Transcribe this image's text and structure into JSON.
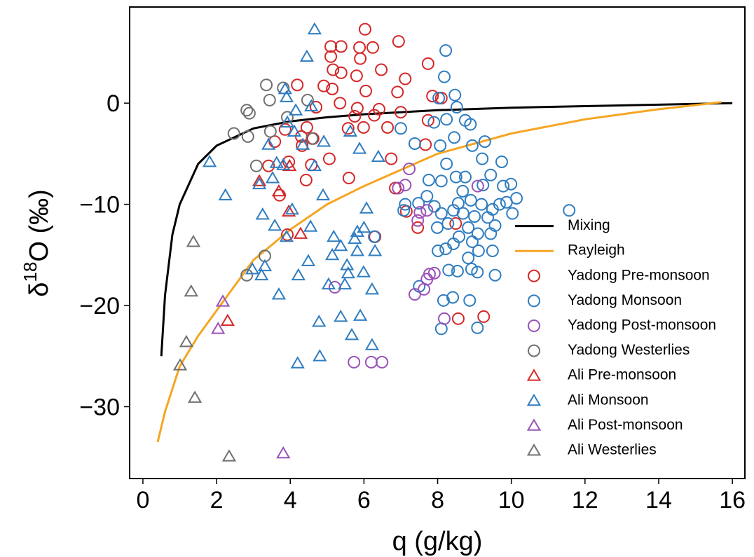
{
  "chart_data": {
    "type": "scatter",
    "xlabel": "q (g/kg)",
    "ylabel": {
      "base": "δ",
      "sup": "18",
      "rest": "O (‰)"
    },
    "xlim": [
      -0.36,
      16.34
    ],
    "ylim": [
      -37.1,
      9.5
    ],
    "xticks": [
      0,
      2,
      4,
      6,
      8,
      10,
      12,
      14,
      16
    ],
    "yticks": [
      {
        "value": -30,
        "label": "−30"
      },
      {
        "value": -20,
        "label": "−20"
      },
      {
        "value": -10,
        "label": "−10"
      },
      0
    ],
    "legend": "lower right",
    "series": [
      {
        "name": "Mixing",
        "kind": "line",
        "color": "#000000",
        "x": [
          0.5,
          0.6,
          0.8,
          1,
          1.5,
          2,
          3,
          4,
          5,
          6,
          8,
          10,
          12,
          14,
          16
        ],
        "y": [
          -25,
          -19,
          -13,
          -10,
          -6,
          -4.2,
          -2.5,
          -1.8,
          -1.4,
          -1.1,
          -0.7,
          -0.45,
          -0.3,
          -0.15,
          0
        ]
      },
      {
        "name": "Rayleigh",
        "kind": "line",
        "color": "#f5a623",
        "x": [
          0.4,
          0.6,
          1,
          1.5,
          2,
          3,
          4,
          5,
          6,
          8,
          10,
          12,
          14,
          15.7
        ],
        "y": [
          -33.5,
          -30.5,
          -26,
          -23,
          -20.5,
          -15.5,
          -12.5,
          -10,
          -8.2,
          -5,
          -3,
          -1.6,
          -0.6,
          0.1
        ]
      },
      {
        "name": "Yadong Pre-monsoon",
        "kind": "scatter",
        "marker": "circle",
        "color": "#d62728",
        "x": [
          6.03,
          6.94,
          5.1,
          5.38,
          5.88,
          6.24,
          5.1,
          5.9,
          7.74,
          6.47,
          5.16,
          5.38,
          5.8,
          7.12,
          4.91,
          4.19,
          5.14,
          6.05,
          6.91,
          7.86,
          8.1,
          4.7,
          5.35,
          5.82,
          6.41,
          7.0,
          7.74,
          6.28,
          5.75,
          5.57,
          5.99,
          6.64,
          4.45,
          4.3,
          3.86,
          3.58,
          4.62,
          4.32,
          5.06,
          4.57,
          4.43,
          3.96,
          3.41,
          3.71,
          5.59,
          6.74,
          6.85,
          7.67,
          7.46,
          6.3,
          8.49,
          8.56,
          9.25,
          7.15,
          3.92
        ],
        "y": [
          7.3,
          6.1,
          5.6,
          5.6,
          5.5,
          5.5,
          4.6,
          4.4,
          3.9,
          3.3,
          3.3,
          3.0,
          2.7,
          2.4,
          1.7,
          1.8,
          1.4,
          1.2,
          1.1,
          0.7,
          0.5,
          -0.4,
          0.0,
          -0.5,
          -0.6,
          -0.9,
          -1.7,
          -1.2,
          -1.3,
          -2.5,
          -2.4,
          -2.4,
          -2.4,
          -3.3,
          -2.6,
          -3.8,
          -3.5,
          -4.2,
          -5.5,
          -6.1,
          -7.6,
          -5.8,
          -6.2,
          -9.1,
          -7.4,
          -5.5,
          -8.4,
          -4.1,
          -12.3,
          -13.2,
          -11.9,
          -21.3,
          -21.1,
          -10.7,
          -13.0
        ]
      },
      {
        "name": "Yadong Monsoon",
        "kind": "scatter",
        "marker": "circle",
        "color": "#2f7dc0",
        "x": [
          8.22,
          8.18,
          8.47,
          8.03,
          8.52,
          8.24,
          7.9,
          8.75,
          8.89,
          7.0,
          8.45,
          8.07,
          7.38,
          8.94,
          9.28,
          8.24,
          9.74,
          9.21,
          8.5,
          7.76,
          8.75,
          8.1,
          9.44,
          9.23,
          9.78,
          9.99,
          10.14,
          8.68,
          8.9,
          8.56,
          9.19,
          9.49,
          9.68,
          9.87,
          8.43,
          8.69,
          9.0,
          9.36,
          10.03,
          7.12,
          7.08,
          7.48,
          7.71,
          7.91,
          8.1,
          7.99,
          8.28,
          8.83,
          9.09,
          9.44,
          9.56,
          8.58,
          8.94,
          8.43,
          8.22,
          8.01,
          9.11,
          8.83,
          9.49,
          8.3,
          8.54,
          8.92,
          9.08,
          9.56,
          8.87,
          8.41,
          8.16,
          8.1,
          9.08,
          11.57,
          6.28,
          7.5
        ],
        "y": [
          5.2,
          2.6,
          0.8,
          0.5,
          -0.4,
          -1.6,
          -1.9,
          -1.7,
          -2.1,
          -2.5,
          -3.4,
          -4.2,
          -4.0,
          -4.2,
          -3.8,
          -6.0,
          -5.8,
          -5.5,
          -7.3,
          -7.6,
          -7.3,
          -7.7,
          -7.1,
          -8.1,
          -8.2,
          -8.0,
          -9.4,
          -8.7,
          -9.6,
          -9.9,
          -10.0,
          -10.5,
          -10.0,
          -9.8,
          -10.6,
          -10.9,
          -11.2,
          -11.3,
          -10.9,
          -10.0,
          -10.6,
          -9.9,
          -9.2,
          -10.2,
          -10.9,
          -12.3,
          -11.9,
          -12.3,
          -12.9,
          -12.9,
          -12.1,
          -13.2,
          -13.7,
          -13.9,
          -14.4,
          -14.6,
          -14.6,
          -15.3,
          -14.6,
          -16.5,
          -16.6,
          -16.4,
          -16.7,
          -17.0,
          -19.5,
          -19.2,
          -19.5,
          -22.3,
          -22.2,
          -10.6,
          -13.2,
          -18.1
        ]
      },
      {
        "name": "Yadong Post-monsoon",
        "kind": "scatter",
        "marker": "circle",
        "color": "#9a52b8",
        "x": [
          7.23,
          6.93,
          7.12,
          9.09,
          7.52,
          7.71,
          7.46,
          7.78,
          7.91,
          7.71,
          7.63,
          7.38,
          8.18,
          5.21,
          5.73,
          6.2,
          6.49
        ],
        "y": [
          -6.5,
          -8.4,
          -8.1,
          -8.2,
          -10.8,
          -10.6,
          -11.6,
          -16.9,
          -16.8,
          -17.4,
          -18.4,
          -18.9,
          -21.3,
          -18.2,
          -25.6,
          -25.6,
          -25.6
        ]
      },
      {
        "name": "Yadong Westerlies",
        "kind": "scatter",
        "marker": "circle",
        "color": "#707070",
        "x": [
          3.35,
          3.81,
          4.47,
          3.44,
          2.82,
          2.89,
          3.92,
          3.46,
          2.47,
          2.85,
          3.08,
          3.31,
          2.82,
          4.59
        ],
        "y": [
          1.8,
          1.5,
          0.3,
          0.3,
          -0.7,
          -1.0,
          -1.4,
          -2.8,
          -3.0,
          -3.3,
          -6.2,
          -15.1,
          -17.0,
          -3.5
        ]
      },
      {
        "name": "Ali Pre-monsoon",
        "kind": "scatter",
        "marker": "triangle",
        "color": "#d62728",
        "x": [
          3.16,
          3.69,
          3.98,
          3.96,
          4.28,
          2.3
        ],
        "y": [
          -7.7,
          -8.7,
          -6.2,
          -10.7,
          -12.9,
          -21.5
        ]
      },
      {
        "name": "Ali Monsoon",
        "kind": "scatter",
        "marker": "triangle",
        "color": "#2f7dc0",
        "x": [
          4.66,
          4.45,
          3.86,
          3.9,
          4.15,
          4.57,
          3.92,
          4.11,
          4.34,
          4.91,
          3.41,
          1.81,
          3.63,
          3.81,
          4.66,
          3.16,
          3.52,
          2.24,
          4.89,
          6.39,
          5.88,
          5.63,
          3.25,
          3.58,
          4.05,
          3.9,
          4.55,
          6.07,
          6.0,
          5.18,
          5.75,
          5.82,
          5.37,
          6.3,
          5.82,
          5.14,
          5.54,
          5.57,
          6.22,
          5.99,
          5.48,
          5.04,
          4.49,
          4.22,
          3.31,
          3.22,
          2.97,
          3.69,
          5.9,
          5.37,
          4.78,
          6.22,
          5.67,
          4.8,
          4.2
        ],
        "y": [
          7.3,
          4.6,
          1.4,
          0.6,
          -0.7,
          -0.3,
          -1.9,
          -2.8,
          -4.1,
          -3.8,
          -4.1,
          -5.8,
          -5.9,
          -6.1,
          -6.2,
          -8.0,
          -7.4,
          -9.1,
          -9.1,
          -5.3,
          -4.5,
          -2.8,
          -11.0,
          -12.1,
          -10.5,
          -13.2,
          -12.2,
          -10.4,
          -12.3,
          -13.2,
          -13.4,
          -12.7,
          -14.1,
          -14.6,
          -14.6,
          -15.0,
          -16.0,
          -16.8,
          -18.4,
          -16.7,
          -17.9,
          -17.9,
          -15.6,
          -17.0,
          -16.1,
          -17.0,
          -16.4,
          -18.9,
          -21.0,
          -21.1,
          -21.6,
          -23.9,
          -22.9,
          -25.0,
          -25.7
        ]
      },
      {
        "name": "Ali Post-monsoon",
        "kind": "scatter",
        "marker": "triangle",
        "color": "#9a52b8",
        "x": [
          2.17,
          2.04,
          3.81
        ],
        "y": [
          -19.6,
          -22.3,
          -34.6
        ]
      },
      {
        "name": "Ali Westerlies",
        "kind": "scatter",
        "marker": "triangle",
        "color": "#707070",
        "x": [
          1.37,
          1.31,
          1.18,
          1.01,
          1.41,
          2.34
        ],
        "y": [
          -13.7,
          -18.6,
          -23.6,
          -25.9,
          -29.1,
          -34.9
        ]
      }
    ]
  }
}
